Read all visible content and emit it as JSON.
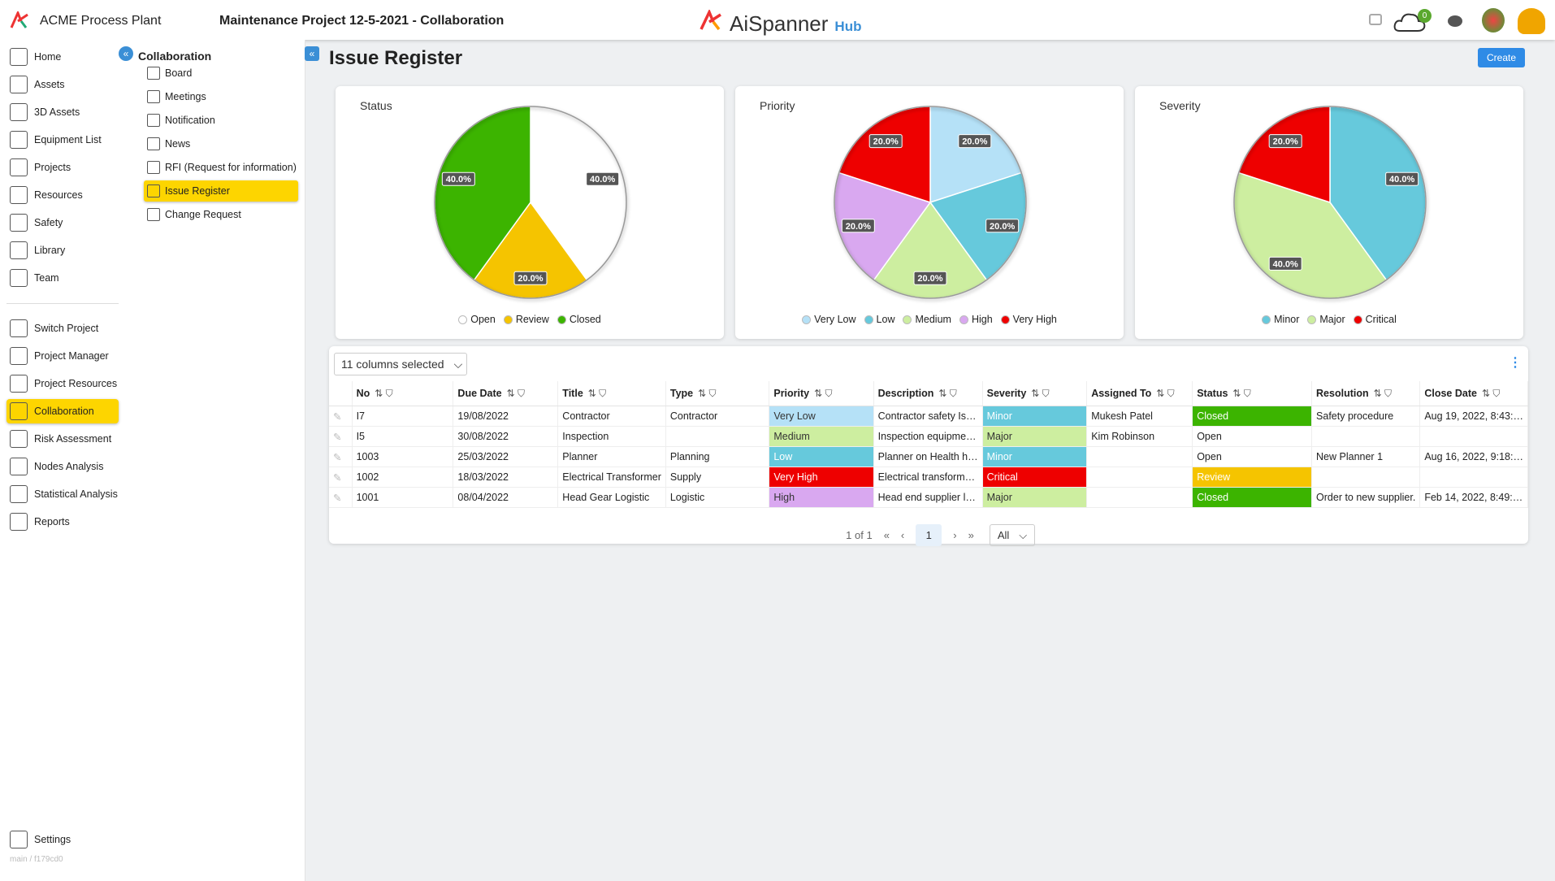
{
  "header": {
    "company": "ACME Process Plant",
    "project": "Maintenance Project 12-5-2021 - Collaboration",
    "brand": "AiSpanner",
    "brand_sub": "Hub",
    "notifications": "0"
  },
  "nav": {
    "items": [
      "Home",
      "Assets",
      "3D Assets",
      "Equipment List",
      "Projects",
      "Resources",
      "Safety",
      "Library",
      "Team"
    ],
    "project_items": [
      "Switch Project",
      "Project Manager",
      "Project Resources",
      "Collaboration",
      "Risk Assessment",
      "Nodes Analysis",
      "Statistical Analysis",
      "Reports"
    ],
    "settings": "Settings",
    "version": "main / f179cd0"
  },
  "subnav": {
    "title": "Collaboration",
    "items": [
      "Board",
      "Meetings",
      "Notification",
      "News",
      "RFI (Request for information)",
      "Issue Register",
      "Change Request"
    ]
  },
  "page": {
    "title": "Issue Register",
    "create": "Create"
  },
  "chart_data": [
    {
      "type": "pie",
      "title": "Status",
      "categories": [
        "Open",
        "Review",
        "Closed"
      ],
      "values": [
        40,
        20,
        40
      ],
      "value_labels": [
        "40.0%",
        "20.0%",
        "40.0%"
      ],
      "colors": [
        "#ffffff",
        "#f5c400",
        "#3cb400"
      ]
    },
    {
      "type": "pie",
      "title": "Priority",
      "categories": [
        "Very Low",
        "Low",
        "Medium",
        "High",
        "Very High"
      ],
      "values": [
        20,
        20,
        20,
        20,
        20
      ],
      "value_labels": [
        "20.0%",
        "20.0%",
        "20.0%",
        "20.0%",
        "20.0%"
      ],
      "colors": [
        "#b5e1f7",
        "#66c9dc",
        "#cdeea0",
        "#d9a8f0",
        "#ee0000"
      ]
    },
    {
      "type": "pie",
      "title": "Severity",
      "categories": [
        "Minor",
        "Major",
        "Critical"
      ],
      "values": [
        40,
        40,
        20
      ],
      "value_labels": [
        "40.0%",
        "40.0%",
        "20.0%"
      ],
      "colors": [
        "#66c9dc",
        "#cdeea0",
        "#ee0000"
      ]
    }
  ],
  "table": {
    "column_selector": "11 columns selected",
    "columns": [
      "No",
      "Due Date",
      "Title",
      "Type",
      "Priority",
      "Description",
      "Severity",
      "Assigned To",
      "Status",
      "Resolution",
      "Close Date"
    ],
    "rows": [
      [
        "I7",
        "19/08/2022",
        "Contractor",
        "Contractor",
        "Very Low",
        "Contractor safety Is…",
        "Minor",
        "Mukesh Patel",
        "Closed",
        "Safety procedure",
        "Aug 19, 2022, 8:43:…"
      ],
      [
        "I5",
        "30/08/2022",
        "Inspection",
        null,
        "Medium",
        "Inspection equipme…",
        "Major",
        "Kim Robinson",
        "Open",
        null,
        null
      ],
      [
        "1003",
        "25/03/2022",
        "Planner",
        "Planning",
        "Low",
        "Planner on Health h…",
        "Minor",
        null,
        "Open",
        "New Planner 1",
        "Aug 16, 2022, 9:18:…"
      ],
      [
        "1002",
        "18/03/2022",
        "Electrical Transformer",
        "Supply",
        "Very High",
        "Electrical transform…",
        "Critical",
        null,
        "Review",
        null,
        null
      ],
      [
        "1001",
        "08/04/2022",
        "Head Gear Logistic",
        "Logistic",
        "High",
        "Head end supplier l…",
        "Major",
        null,
        "Closed",
        "Order to new supplier.",
        "Feb 14, 2022, 8:49:…"
      ]
    ]
  },
  "pagination": {
    "summary": "1 of 1",
    "page": "1",
    "page_size": "All"
  }
}
